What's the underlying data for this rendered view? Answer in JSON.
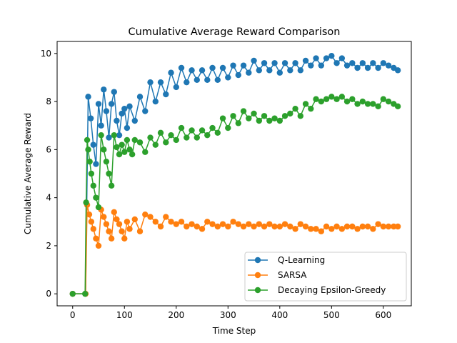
{
  "chart_data": {
    "type": "line",
    "title": "Cumulative Average Reward Comparison",
    "xlabel": "Time Step",
    "ylabel": "Cumulative Average Reward",
    "xlim": [
      -30,
      654
    ],
    "ylim": [
      -0.5,
      10.5
    ],
    "xticks": [
      0,
      100,
      200,
      300,
      400,
      500,
      600
    ],
    "yticks": [
      0,
      2,
      4,
      6,
      8,
      10
    ],
    "grid": false,
    "legend_position": "lower-right",
    "markers": "circle",
    "series": [
      {
        "name": "Q-Learning",
        "color": "#1f77b4",
        "x": [
          0,
          25,
          30,
          35,
          40,
          45,
          50,
          55,
          60,
          65,
          70,
          75,
          80,
          85,
          90,
          95,
          100,
          105,
          110,
          120,
          130,
          140,
          150,
          160,
          170,
          180,
          190,
          200,
          210,
          220,
          230,
          240,
          250,
          260,
          270,
          280,
          290,
          300,
          310,
          320,
          330,
          340,
          350,
          360,
          370,
          380,
          390,
          400,
          410,
          420,
          430,
          440,
          450,
          460,
          470,
          480,
          490,
          500,
          510,
          520,
          530,
          540,
          550,
          560,
          570,
          580,
          590,
          600,
          610,
          620,
          628
        ],
        "y": [
          0,
          0,
          8.2,
          7.3,
          6.2,
          5.4,
          7.9,
          7.0,
          8.5,
          7.6,
          6.5,
          7.9,
          8.4,
          7.2,
          6.6,
          7.5,
          7.7,
          6.9,
          7.8,
          7.2,
          8.2,
          7.6,
          8.8,
          8.0,
          8.8,
          8.3,
          9.2,
          8.6,
          9.4,
          8.8,
          9.3,
          8.9,
          9.3,
          8.9,
          9.4,
          8.9,
          9.4,
          9.0,
          9.5,
          9.1,
          9.5,
          9.2,
          9.7,
          9.3,
          9.6,
          9.3,
          9.6,
          9.2,
          9.6,
          9.3,
          9.6,
          9.3,
          9.7,
          9.5,
          9.8,
          9.5,
          9.8,
          9.9,
          9.6,
          9.8,
          9.5,
          9.6,
          9.4,
          9.6,
          9.4,
          9.6,
          9.4,
          9.6,
          9.5,
          9.4,
          9.3
        ]
      },
      {
        "name": "SARSA",
        "color": "#ff7f0e",
        "x": [
          0,
          25,
          28,
          32,
          36,
          40,
          45,
          50,
          55,
          60,
          65,
          70,
          75,
          80,
          85,
          90,
          95,
          100,
          105,
          110,
          120,
          130,
          140,
          150,
          160,
          170,
          180,
          190,
          200,
          210,
          220,
          230,
          240,
          250,
          260,
          270,
          280,
          290,
          300,
          310,
          320,
          330,
          340,
          350,
          360,
          370,
          380,
          390,
          400,
          410,
          420,
          430,
          440,
          450,
          460,
          470,
          480,
          490,
          500,
          510,
          520,
          530,
          540,
          550,
          560,
          570,
          580,
          590,
          600,
          610,
          620,
          628
        ],
        "y": [
          0,
          0,
          3.7,
          3.3,
          3.0,
          2.7,
          2.3,
          2.0,
          3.5,
          3.2,
          2.9,
          2.6,
          2.3,
          3.4,
          3.1,
          2.9,
          2.6,
          2.3,
          3.0,
          2.7,
          3.1,
          2.6,
          3.3,
          3.2,
          3.0,
          2.8,
          3.2,
          3.0,
          2.9,
          3.0,
          2.8,
          2.9,
          2.8,
          2.7,
          3.0,
          2.9,
          2.8,
          2.9,
          2.8,
          3.0,
          2.9,
          2.8,
          2.9,
          2.8,
          2.9,
          2.8,
          2.9,
          2.8,
          2.8,
          2.9,
          2.8,
          2.7,
          2.9,
          2.8,
          2.7,
          2.7,
          2.6,
          2.8,
          2.7,
          2.8,
          2.7,
          2.8,
          2.8,
          2.7,
          2.8,
          2.8,
          2.7,
          2.9,
          2.8,
          2.8,
          2.8,
          2.8
        ]
      },
      {
        "name": "Decaying Epsilon-Greedy",
        "color": "#2ca02c",
        "x": [
          0,
          24,
          26,
          28,
          30,
          33,
          36,
          40,
          45,
          50,
          55,
          60,
          65,
          70,
          75,
          80,
          85,
          90,
          95,
          100,
          105,
          110,
          115,
          120,
          130,
          140,
          150,
          160,
          170,
          180,
          190,
          200,
          210,
          220,
          230,
          240,
          250,
          260,
          270,
          280,
          290,
          300,
          310,
          320,
          330,
          340,
          350,
          360,
          370,
          380,
          390,
          400,
          410,
          420,
          430,
          440,
          450,
          460,
          470,
          480,
          490,
          500,
          510,
          520,
          530,
          540,
          550,
          560,
          570,
          580,
          590,
          600,
          610,
          620,
          628
        ],
        "y": [
          0,
          0,
          3.8,
          6.4,
          6.0,
          5.5,
          5.0,
          4.5,
          4.0,
          3.6,
          6.6,
          6.0,
          5.5,
          5.0,
          4.5,
          6.6,
          6.1,
          5.8,
          6.2,
          5.9,
          6.4,
          6.0,
          5.8,
          6.4,
          6.3,
          5.9,
          6.5,
          6.2,
          6.7,
          6.3,
          6.6,
          6.4,
          6.9,
          6.5,
          6.8,
          6.5,
          6.8,
          6.6,
          6.9,
          6.7,
          7.3,
          6.9,
          7.4,
          7.1,
          7.6,
          7.3,
          7.5,
          7.2,
          7.4,
          7.2,
          7.3,
          7.2,
          7.4,
          7.5,
          7.7,
          7.4,
          7.9,
          7.7,
          8.1,
          8.0,
          8.1,
          8.2,
          8.1,
          8.2,
          8.0,
          8.1,
          7.9,
          8.0,
          7.9,
          7.9,
          7.8,
          8.1,
          8.0,
          7.9,
          7.8
        ]
      }
    ]
  }
}
